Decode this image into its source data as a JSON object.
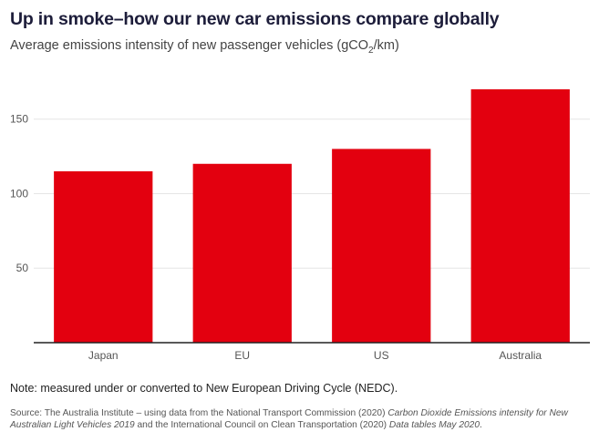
{
  "title": "Up in smoke–how our new car emissions compare globally",
  "subtitle_main": "Average emissions intensity of new passenger vehicles (gCO",
  "subtitle_sub": "2",
  "subtitle_end": "/km)",
  "note": "Note: measured under or converted to New European Driving Cycle (NEDC).",
  "source": {
    "part1": "Source: The Australia Institute – using data from the National Transport Commission (2020) ",
    "italic1": "Carbon Dioxide Emissions intensity for New Australian Light Vehicles 2019",
    "part2": " and the International Council on Clean Transportation (2020) ",
    "italic2": "Data tables May 2020",
    "part3": "."
  },
  "colors": {
    "bar": "#e3000f",
    "grid": "#e5e5e5",
    "axis": "#222222"
  },
  "chart_data": {
    "type": "bar",
    "categories": [
      "Japan",
      "EU",
      "US",
      "Australia"
    ],
    "values": [
      115,
      120,
      130,
      170
    ],
    "ylim": [
      0,
      170
    ],
    "yticks": [
      50,
      100,
      150
    ],
    "grid": true
  }
}
